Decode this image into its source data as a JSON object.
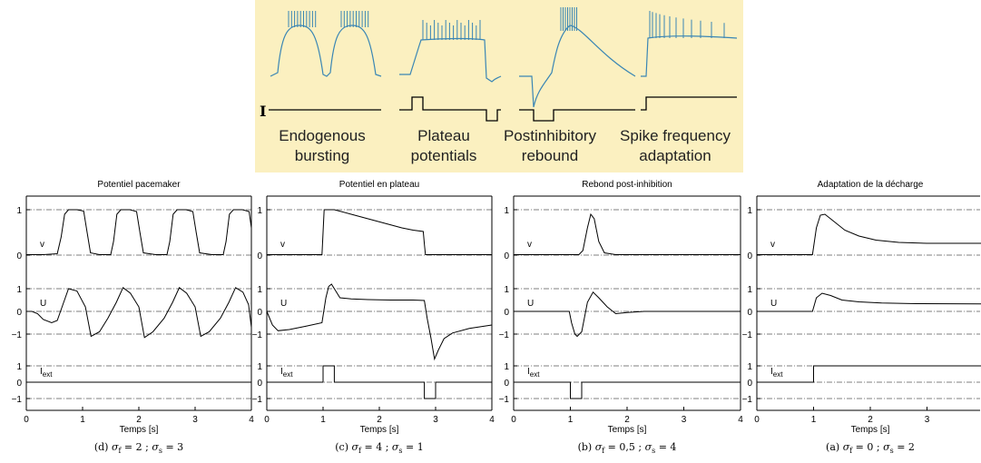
{
  "top_panel": {
    "background": "#fbf0c0",
    "trace_color": "#3a86b4",
    "current_label": "I",
    "items": [
      {
        "line1": "Endogenous",
        "line2": "bursting"
      },
      {
        "line1": "Plateau",
        "line2": "potentials"
      },
      {
        "line1": "Postinhibitory",
        "line2": "rebound"
      },
      {
        "line1": "Spike frequency",
        "line2": "adaptation"
      }
    ]
  },
  "chart_data": [
    {
      "type": "line",
      "title": "Potentiel pacemaker",
      "caption": "(d) σ f = 2 ; σ s = 3",
      "caption_parts": {
        "label": "(d)",
        "sf": "2",
        "ss": "3"
      },
      "xlabel": "Temps [s]",
      "xlim": [
        0,
        4
      ],
      "xticks": [
        "0",
        "1",
        "2",
        "3",
        "4"
      ],
      "series": [
        {
          "name": "v",
          "x": [
            0,
            0.3,
            0.55,
            0.62,
            0.68,
            0.75,
            0.9,
            1.02,
            1.08,
            1.14,
            1.3,
            1.5,
            1.55,
            1.61,
            1.68,
            1.84,
            1.96,
            2.02,
            2.08,
            2.3,
            2.5,
            2.55,
            2.61,
            2.68,
            2.84,
            2.96,
            3.02,
            3.08,
            3.3,
            3.5,
            3.55,
            3.61,
            3.68,
            3.84,
            3.96,
            4.0
          ],
          "y": [
            0.01,
            0.01,
            0.03,
            0.4,
            0.9,
            1.0,
            1.0,
            0.97,
            0.5,
            0.05,
            0.01,
            0.01,
            0.3,
            0.9,
            1.0,
            1.0,
            0.96,
            0.5,
            0.05,
            0.01,
            0.01,
            0.3,
            0.9,
            1.0,
            1.0,
            0.96,
            0.5,
            0.05,
            0.01,
            0.01,
            0.3,
            0.9,
            1.0,
            1.0,
            0.96,
            0.6
          ]
        },
        {
          "name": "U",
          "x": [
            0,
            0.1,
            0.2,
            0.3,
            0.45,
            0.55,
            0.65,
            0.75,
            0.9,
            1.05,
            1.15,
            1.3,
            1.45,
            1.6,
            1.72,
            1.85,
            2.0,
            2.1,
            2.25,
            2.45,
            2.6,
            2.72,
            2.85,
            3.0,
            3.1,
            3.25,
            3.45,
            3.6,
            3.72,
            3.85,
            3.95,
            4.0
          ],
          "y": [
            0.0,
            0.0,
            -0.1,
            -0.35,
            -0.5,
            -0.4,
            0.3,
            1.0,
            0.9,
            0.2,
            -1.1,
            -0.9,
            -0.3,
            0.4,
            1.05,
            0.8,
            0.2,
            -1.15,
            -0.9,
            -0.3,
            0.4,
            1.05,
            0.8,
            0.2,
            -1.1,
            -0.9,
            -0.3,
            0.4,
            1.05,
            0.85,
            0.3,
            -0.7
          ]
        },
        {
          "name": "Iext",
          "x": [
            0,
            4
          ],
          "y": [
            0,
            0
          ]
        }
      ]
    },
    {
      "type": "line",
      "title": "Potentiel en plateau",
      "caption": "(c) σ f = 4 ; σ s = 1",
      "caption_parts": {
        "label": "(c)",
        "sf": "4",
        "ss": "1"
      },
      "xlabel": "Temps [s]",
      "xlim": [
        0,
        4
      ],
      "xticks": [
        "0",
        "1",
        "2",
        "3",
        "4"
      ],
      "series": [
        {
          "name": "v",
          "x": [
            0,
            0.98,
            1.0,
            1.02,
            1.2,
            1.5,
            1.8,
            2.1,
            2.4,
            2.6,
            2.78,
            2.8,
            2.82,
            3.0,
            4.0
          ],
          "y": [
            0.01,
            0.01,
            0.5,
            1.0,
            1.0,
            0.9,
            0.8,
            0.7,
            0.6,
            0.55,
            0.52,
            0.25,
            0.01,
            0.01,
            0.01
          ]
        },
        {
          "name": "U",
          "x": [
            0,
            0.1,
            0.2,
            0.4,
            0.7,
            0.98,
            1.05,
            1.1,
            1.15,
            1.2,
            1.3,
            1.5,
            1.8,
            2.2,
            2.6,
            2.8,
            2.85,
            2.92,
            2.98,
            3.05,
            3.15,
            3.3,
            3.6,
            4.0
          ],
          "y": [
            0.0,
            -0.6,
            -0.85,
            -0.8,
            -0.65,
            -0.5,
            0.6,
            1.1,
            1.2,
            1.0,
            0.6,
            0.55,
            0.52,
            0.5,
            0.5,
            0.48,
            -0.3,
            -1.2,
            -2.1,
            -1.7,
            -1.2,
            -0.95,
            -0.75,
            -0.6
          ]
        },
        {
          "name": "Iext",
          "x": [
            0,
            1.0,
            1.0,
            1.2,
            1.2,
            2.8,
            2.8,
            3.0,
            3.0,
            4.0
          ],
          "y": [
            0,
            0,
            1,
            1,
            0,
            0,
            -1,
            -1,
            0,
            0
          ]
        }
      ]
    },
    {
      "type": "line",
      "title": "Rebond post-inhibition",
      "caption": "(b) σ f = 0,5 ; σ s = 4",
      "caption_parts": {
        "label": "(b)",
        "sf": "0,5",
        "ss": "4"
      },
      "xlabel": "Temps [s]",
      "xlim": [
        0,
        4
      ],
      "xticks": [
        "0",
        "1",
        "2",
        "3",
        "4"
      ],
      "series": [
        {
          "name": "v",
          "x": [
            0,
            1.15,
            1.22,
            1.3,
            1.36,
            1.42,
            1.5,
            1.6,
            1.8,
            4.0
          ],
          "y": [
            0.01,
            0.01,
            0.1,
            0.6,
            0.9,
            0.8,
            0.3,
            0.05,
            0.01,
            0.01
          ]
        },
        {
          "name": "U",
          "x": [
            0,
            0.98,
            1.02,
            1.08,
            1.12,
            1.2,
            1.3,
            1.4,
            1.5,
            1.65,
            1.8,
            2.0,
            2.3,
            4.0
          ],
          "y": [
            0,
            0,
            -0.5,
            -1.0,
            -1.1,
            -0.9,
            0.4,
            0.85,
            0.6,
            0.2,
            -0.1,
            -0.05,
            0,
            0
          ]
        },
        {
          "name": "Iext",
          "x": [
            0,
            1.0,
            1.0,
            1.2,
            1.2,
            4.0
          ],
          "y": [
            0,
            0,
            -1,
            -1,
            0,
            0
          ]
        }
      ]
    },
    {
      "type": "line",
      "title": "Adaptation de la décharge",
      "caption": "(a) σ f = 0 ; σ s = 2",
      "caption_parts": {
        "label": "(a)",
        "sf": "0",
        "ss": "2"
      },
      "xlabel": "Temps [s]",
      "xlim": [
        0,
        4
      ],
      "xticks": [
        "0",
        "1",
        "2",
        "3"
      ],
      "series": [
        {
          "name": "v",
          "x": [
            0,
            0.98,
            1.05,
            1.12,
            1.2,
            1.35,
            1.55,
            1.8,
            2.1,
            2.5,
            3.0,
            4.0
          ],
          "y": [
            0.01,
            0.01,
            0.6,
            0.88,
            0.9,
            0.75,
            0.55,
            0.42,
            0.33,
            0.28,
            0.26,
            0.26
          ]
        },
        {
          "name": "U",
          "x": [
            0,
            0.98,
            1.05,
            1.15,
            1.3,
            1.5,
            1.8,
            2.2,
            2.8,
            4.0
          ],
          "y": [
            0,
            0,
            0.6,
            0.8,
            0.7,
            0.5,
            0.42,
            0.37,
            0.34,
            0.33
          ]
        },
        {
          "name": "Iext",
          "x": [
            0,
            1.0,
            1.0,
            4.0
          ],
          "y": [
            0,
            0,
            1,
            1
          ]
        }
      ]
    }
  ]
}
